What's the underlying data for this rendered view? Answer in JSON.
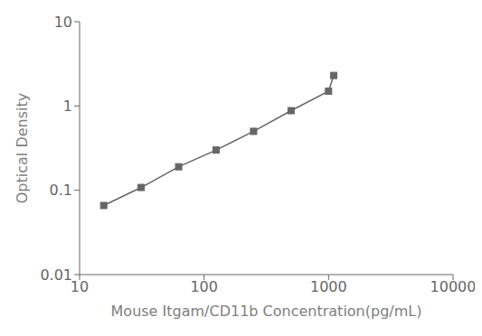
{
  "chart_data": {
    "type": "line",
    "x": [
      15.625,
      31.25,
      62.5,
      125,
      250,
      500,
      1000,
      1100
    ],
    "series": [
      {
        "name": "Optical Density",
        "color": "#666666",
        "marker": "square",
        "values": [
          0.066,
          0.108,
          0.19,
          0.3,
          0.5,
          0.88,
          1.5,
          2.3
        ]
      }
    ],
    "xlim": [
      10,
      10000
    ],
    "ylim": [
      0.01,
      10
    ],
    "xticks": [
      10,
      100,
      1000,
      10000
    ],
    "yticks": [
      0.01,
      0.1,
      1,
      10
    ],
    "xlabel": "Mouse Itgam/CD11b Concentration(pg/mL)",
    "ylabel": "Optical Density",
    "log": true
  }
}
